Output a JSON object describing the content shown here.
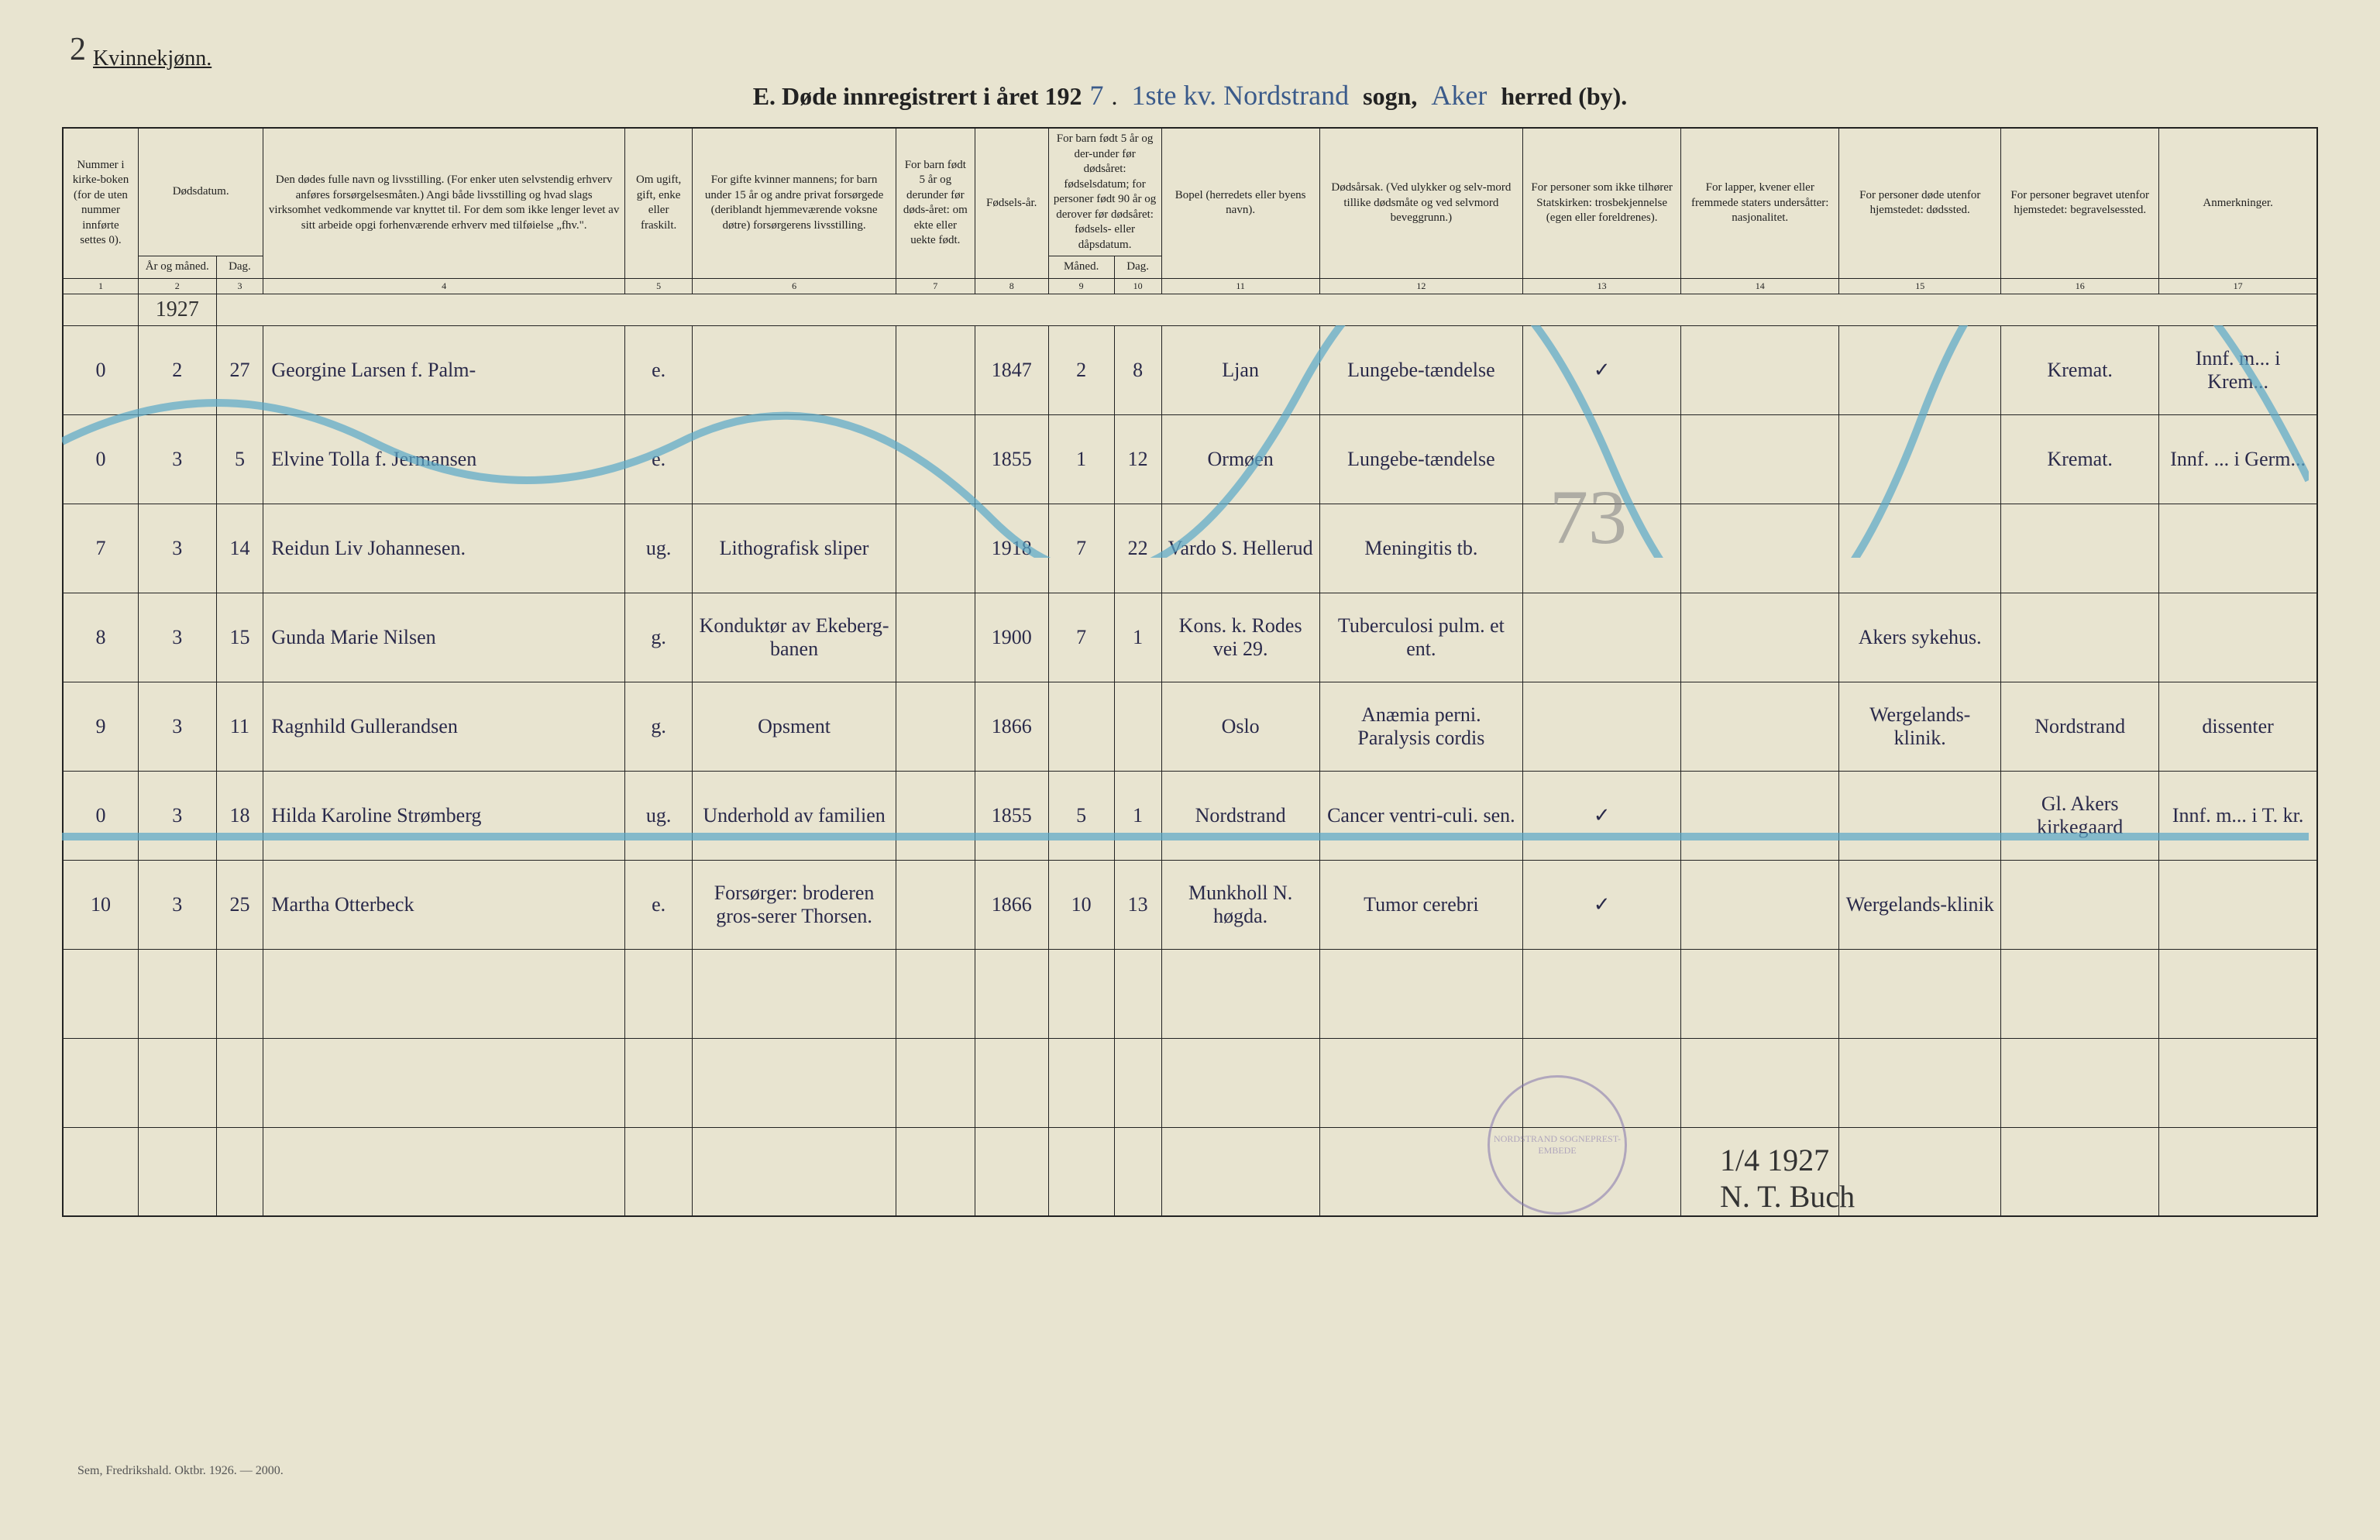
{
  "page_number": "2",
  "gender_label": "Kvinnekjønn.",
  "title": {
    "prefix": "E.   Døde innregistrert i året 192",
    "year_suffix": "7",
    "segment1": "1ste kv. Nordstrand",
    "sogn_label": "sogn,",
    "segment2": "Aker",
    "herred_label": "herred (by)."
  },
  "columns": {
    "c1": "Nummer i kirke-boken (for de uten nummer innførte settes 0).",
    "c2_top": "Dødsdatum.",
    "c2a": "År og måned.",
    "c2b": "Dag.",
    "c3": "Den dødes fulle navn og livsstilling. (For enker uten selvstendig erhverv anføres forsørgelsesmåten.) Angi både livsstilling og hvad slags virksomhet vedkommende var knyttet til. For dem som ikke lenger levet av sitt arbeide opgi forhenværende erhverv med tilføielse „fhv.\".",
    "c4": "Om ugift, gift, enke eller fraskilt.",
    "c5": "For gifte kvinner mannens; for barn under 15 år og andre privat forsørgede (deriblandt hjemmeværende voksne døtre) forsørgerens livsstilling.",
    "c6": "For barn født 5 år og derunder før døds-året: om ekte eller uekte født.",
    "c7": "Fødsels-år.",
    "c8_top": "For barn født 5 år og der-under før dødsåret: fødselsdatum; for personer født 90 år og derover før dødsåret: fødsels- eller dåpsdatum.",
    "c8a": "Måned.",
    "c8b": "Dag.",
    "c9": "Bopel (herredets eller byens navn).",
    "c10": "Dødsårsak. (Ved ulykker og selv-mord tillike dødsmåte og ved selvmord beveggrunn.)",
    "c11": "For personer som ikke tilhører Statskirken: trosbekjennelse (egen eller foreldrenes).",
    "c12": "For lapper, kvener eller fremmede staters undersåtter: nasjonalitet.",
    "c13": "For personer døde utenfor hjemstedet: dødssted.",
    "c14": "For personer begravet utenfor hjemstedet: begravelsessted.",
    "c15": "Anmerkninger."
  },
  "colnums": [
    "1",
    "2",
    "3",
    "4",
    "5",
    "6",
    "7",
    "8",
    "9",
    "10",
    "11",
    "12",
    "13",
    "14",
    "15",
    "16",
    "17"
  ],
  "year_header": "1927",
  "rows": [
    {
      "num": "0",
      "mnd": "2",
      "dag": "27",
      "navn": "Georgine Larsen f. Palm-",
      "status": "e.",
      "fors": "",
      "ekte": "",
      "faar": "1847",
      "fmnd": "2",
      "fdag": "8",
      "bopel": "Ljan",
      "aarsak": "Lungebe-tændelse",
      "tros": "✓",
      "nasj": "",
      "doed": "",
      "begr": "Kremat.",
      "anm": "Innf. m... i Krem..."
    },
    {
      "num": "0",
      "mnd": "3",
      "dag": "5",
      "navn": "Elvine Tolla f. Jermansen",
      "status": "e.",
      "fors": "",
      "ekte": "",
      "faar": "1855",
      "fmnd": "1",
      "fdag": "12",
      "bopel": "Ormøen",
      "aarsak": "Lungebe-tændelse",
      "tros": "",
      "nasj": "",
      "doed": "",
      "begr": "Kremat.",
      "anm": "Innf. ... i Germ..."
    },
    {
      "num": "7",
      "mnd": "3",
      "dag": "14",
      "navn": "Reidun Liv Johannesen.",
      "status": "ug.",
      "fors": "Lithografisk sliper",
      "ekte": "",
      "faar": "1918",
      "fmnd": "7",
      "fdag": "22",
      "bopel": "Vardo S. Hellerud",
      "aarsak": "Meningitis tb.",
      "tros": "",
      "nasj": "",
      "doed": "",
      "begr": "",
      "anm": ""
    },
    {
      "num": "8",
      "mnd": "3",
      "dag": "15",
      "navn": "Gunda Marie Nilsen",
      "status": "g.",
      "fors": "Konduktør av Ekeberg-banen",
      "ekte": "",
      "faar": "1900",
      "fmnd": "7",
      "fdag": "1",
      "bopel": "Kons. k. Rodes vei 29.",
      "aarsak": "Tuberculosi pulm. et ent.",
      "tros": "",
      "nasj": "",
      "doed": "Akers sykehus.",
      "begr": "",
      "anm": ""
    },
    {
      "num": "9",
      "mnd": "3",
      "dag": "11",
      "navn": "Ragnhild Gullerandsen",
      "status": "g.",
      "fors": "Opsment",
      "ekte": "",
      "faar": "1866",
      "fmnd": "",
      "fdag": "",
      "bopel": "Oslo",
      "aarsak": "Anæmia perni. Paralysis cordis",
      "tros": "",
      "nasj": "",
      "doed": "Wergelands-klinik.",
      "begr": "Nordstrand",
      "anm": "dissenter"
    },
    {
      "num": "0",
      "mnd": "3",
      "dag": "18",
      "navn": "Hilda Karoline Strømberg",
      "status": "ug.",
      "fors": "Underhold av familien",
      "ekte": "",
      "faar": "1855",
      "fmnd": "5",
      "fdag": "1",
      "bopel": "Nordstrand",
      "aarsak": "Cancer ventri-culi. sen.",
      "tros": "✓",
      "nasj": "",
      "doed": "",
      "begr": "Gl. Akers kirkegaard",
      "anm": "Innf. m... i T. kr."
    },
    {
      "num": "10",
      "mnd": "3",
      "dag": "25",
      "navn": "Martha Otterbeck",
      "status": "e.",
      "fors": "Forsørger: broderen gros-serer Thorsen.",
      "ekte": "",
      "faar": "1866",
      "fmnd": "10",
      "fdag": "13",
      "bopel": "Munkholl N. høgda.",
      "aarsak": "Tumor cerebri",
      "tros": "✓",
      "nasj": "",
      "doed": "Wergelands-klinik",
      "begr": "",
      "anm": ""
    }
  ],
  "stamp_text": "NORDSTRAND SOGNEPREST-EMBEDE",
  "signature_date": "1/4 1927",
  "signature_name": "N. T. Buch",
  "footer": "Sem, Fredrikshald. Oktbr. 1926. — 2000.",
  "pencil_mark": "73",
  "colors": {
    "paper": "#e8e4d0",
    "ink": "#222222",
    "hand_ink": "#2a2a4a",
    "blue_pencil": "#5aa8c8",
    "stamp": "#7a6aaa"
  }
}
